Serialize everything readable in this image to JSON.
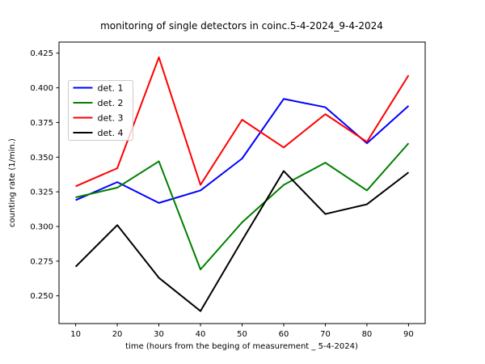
{
  "figure": {
    "background": "#ffffff",
    "frame_color": "#000000"
  },
  "chart_data": {
    "type": "line",
    "title": "monitoring of single detectors in coinc.5-4-2024_9-4-2024",
    "xlabel": "time (hours from the beging of measurement _ 5-4-2024)",
    "ylabel": "counting rate (1/min.)",
    "x": [
      10,
      20,
      30,
      40,
      50,
      60,
      70,
      80,
      90
    ],
    "series": [
      {
        "name": "det. 1",
        "color": "#0000ff",
        "values": [
          0.319,
          0.332,
          0.317,
          0.326,
          0.349,
          0.392,
          0.386,
          0.36,
          0.387
        ]
      },
      {
        "name": "det. 2",
        "color": "#008000",
        "values": [
          0.321,
          0.328,
          0.347,
          0.269,
          0.303,
          0.33,
          0.346,
          0.326,
          0.36
        ]
      },
      {
        "name": "det. 3",
        "color": "#ff0000",
        "values": [
          0.329,
          0.342,
          0.422,
          0.33,
          0.377,
          0.357,
          0.381,
          0.361,
          0.409
        ]
      },
      {
        "name": "det. 4",
        "color": "#000000",
        "values": [
          0.271,
          0.301,
          0.263,
          0.239,
          0.29,
          0.34,
          0.309,
          0.316,
          0.339
        ]
      }
    ],
    "xtick_labels": [
      "10",
      "20",
      "30",
      "40",
      "50",
      "60",
      "70",
      "80",
      "90"
    ],
    "ytick_labels": [
      "0.250",
      "0.275",
      "0.300",
      "0.325",
      "0.350",
      "0.375",
      "0.400",
      "0.425"
    ],
    "yticks": [
      0.25,
      0.275,
      0.3,
      0.325,
      0.35,
      0.375,
      0.4,
      0.425
    ],
    "xlim": [
      6,
      94
    ],
    "ylim": [
      0.23,
      0.433
    ],
    "grid": false,
    "legend_position": "upper left",
    "line_width": 2
  }
}
